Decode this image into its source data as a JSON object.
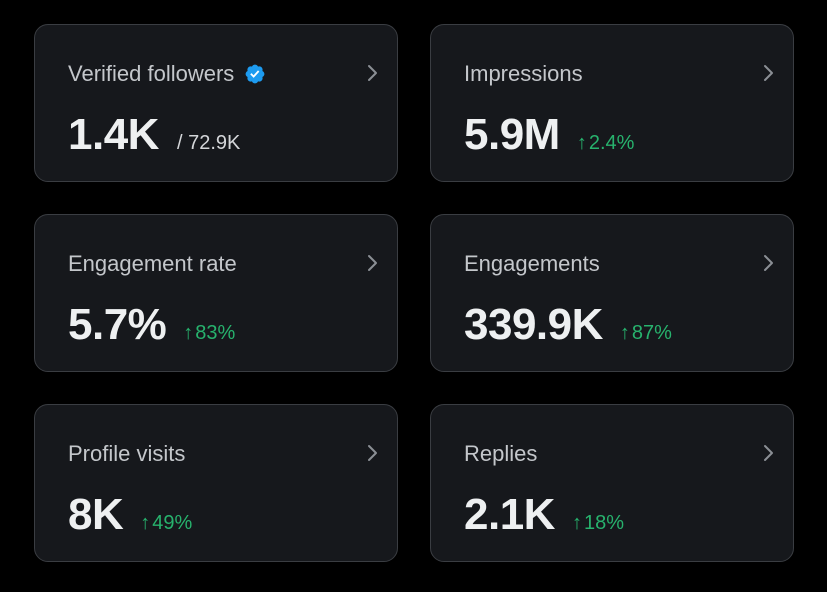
{
  "colors": {
    "background": "#000000",
    "card": "#16181c",
    "border": "#3a3d42",
    "label": "#c4c7cb",
    "value": "#eef0f1",
    "positive": "#27b26d",
    "verified": "#1d9bf0"
  },
  "cards": [
    {
      "label": "Verified followers",
      "value": "1.4K",
      "total": "/ 72.9K",
      "icon": "verified-badge-icon"
    },
    {
      "label": "Impressions",
      "value": "5.9M",
      "delta_arrow": "↑",
      "delta": "2.4%"
    },
    {
      "label": "Engagement rate",
      "value": "5.7%",
      "delta_arrow": "↑",
      "delta": "83%"
    },
    {
      "label": "Engagements",
      "value": "339.9K",
      "delta_arrow": "↑",
      "delta": "87%"
    },
    {
      "label": "Profile visits",
      "value": "8K",
      "delta_arrow": "↑",
      "delta": "49%"
    },
    {
      "label": "Replies",
      "value": "2.1K",
      "delta_arrow": "↑",
      "delta": "18%"
    }
  ]
}
